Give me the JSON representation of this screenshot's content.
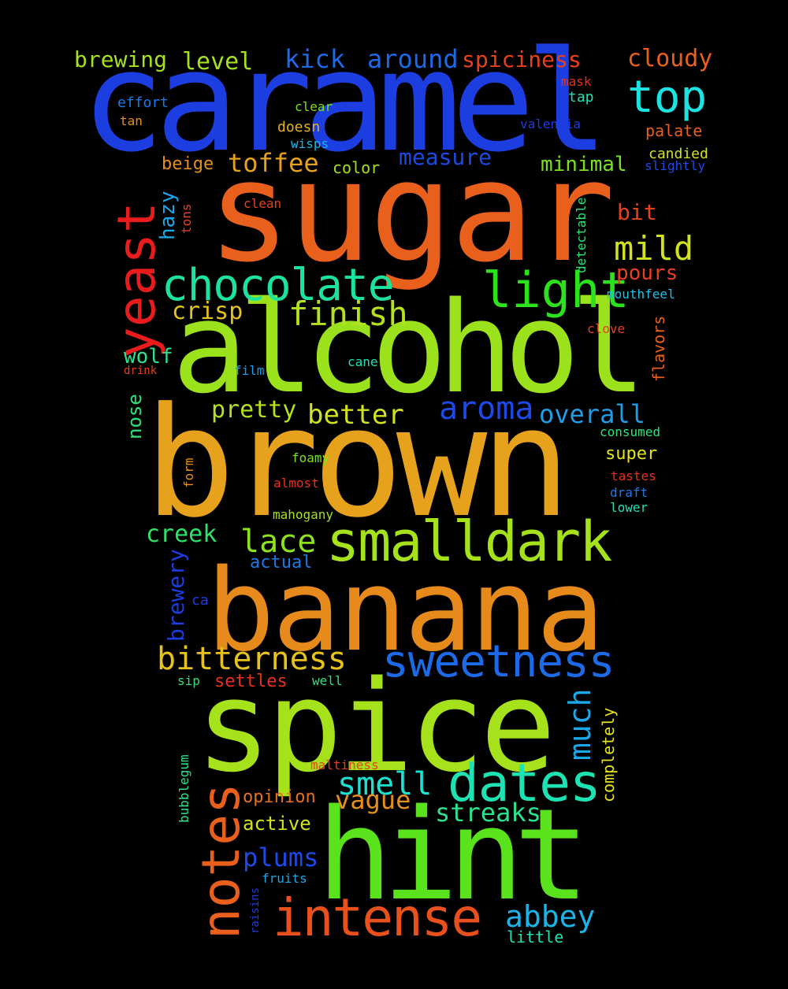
{
  "words": [
    {
      "text": "caramel",
      "color": "#1c3de0"
    },
    {
      "text": "sugar",
      "color": "#e8601c"
    },
    {
      "text": "alcohol",
      "color": "#9ce21c"
    },
    {
      "text": "brown",
      "color": "#e6a21c"
    },
    {
      "text": "banana",
      "color": "#e68a1c"
    },
    {
      "text": "spice",
      "color": "#a6e21c"
    },
    {
      "text": "hint",
      "color": "#5ae21c"
    },
    {
      "text": "smalldark",
      "color": "#a6e21c"
    },
    {
      "text": "intense",
      "color": "#e8501c"
    },
    {
      "text": "sweetness",
      "color": "#1c6ae8"
    },
    {
      "text": "dates",
      "color": "#1ce2b4"
    },
    {
      "text": "notes",
      "color": "#e8601c"
    },
    {
      "text": "yeast",
      "color": "#e81c1c"
    },
    {
      "text": "chocolate",
      "color": "#1ce2a0"
    },
    {
      "text": "light",
      "color": "#2ce21c"
    },
    {
      "text": "top",
      "color": "#1ce2e2"
    },
    {
      "text": "finish",
      "color": "#b4e21c"
    },
    {
      "text": "bitterness",
      "color": "#e6c21c"
    },
    {
      "text": "mild",
      "color": "#d2e21c"
    },
    {
      "text": "aroma",
      "color": "#1c4ae8"
    },
    {
      "text": "overall",
      "color": "#1c9ee8"
    },
    {
      "text": "better",
      "color": "#d2e21c"
    },
    {
      "text": "pretty",
      "color": "#b4e21c"
    },
    {
      "text": "lace",
      "color": "#8ee21c"
    },
    {
      "text": "smell",
      "color": "#1ce2d2"
    },
    {
      "text": "abbey",
      "color": "#1cb4e8"
    },
    {
      "text": "plums",
      "color": "#1c4ae8"
    },
    {
      "text": "much",
      "color": "#1ca8e8"
    },
    {
      "text": "streaks",
      "color": "#2ce28e"
    },
    {
      "text": "vague",
      "color": "#e6901c"
    },
    {
      "text": "toffee",
      "color": "#e6a21c"
    },
    {
      "text": "kick",
      "color": "#1c6ae8"
    },
    {
      "text": "around",
      "color": "#1c6ae8"
    },
    {
      "text": "spiciness",
      "color": "#e8401c"
    },
    {
      "text": "cloudy",
      "color": "#e8601c"
    },
    {
      "text": "brewing",
      "color": "#a6e21c"
    },
    {
      "text": "level",
      "color": "#a6e21c"
    },
    {
      "text": "crisp",
      "color": "#e6c21c"
    },
    {
      "text": "creek",
      "color": "#2ce26a"
    },
    {
      "text": "measure",
      "color": "#1c4ae8"
    },
    {
      "text": "minimal",
      "color": "#7ae21c"
    },
    {
      "text": "bit",
      "color": "#e8401c"
    },
    {
      "text": "pours",
      "color": "#e8401c"
    },
    {
      "text": "brewery",
      "color": "#1c3de0"
    },
    {
      "text": "hazy",
      "color": "#1ca8e8"
    },
    {
      "text": "wolf",
      "color": "#2ce28e"
    },
    {
      "text": "nose",
      "color": "#2ce27a"
    },
    {
      "text": "active",
      "color": "#d2e21c"
    },
    {
      "text": "opinion",
      "color": "#e8701c"
    },
    {
      "text": "super",
      "color": "#e6e21c"
    },
    {
      "text": "actual",
      "color": "#1c7ae8"
    },
    {
      "text": "beige",
      "color": "#e6901c"
    },
    {
      "text": "color",
      "color": "#a6e21c"
    },
    {
      "text": "flavors",
      "color": "#e8601c"
    },
    {
      "text": "completely",
      "color": "#e6e21c"
    },
    {
      "text": "little",
      "color": "#1ce2b4"
    },
    {
      "text": "settles",
      "color": "#e8301c"
    },
    {
      "text": "effort",
      "color": "#1c7ae8"
    },
    {
      "text": "clear",
      "color": "#7ae21c"
    },
    {
      "text": "tap",
      "color": "#1ce2b4"
    },
    {
      "text": "mask",
      "color": "#e8301c"
    },
    {
      "text": "tan",
      "color": "#e6901c"
    },
    {
      "text": "doesn",
      "color": "#e6b21c"
    },
    {
      "text": "valencia",
      "color": "#1c3de0"
    },
    {
      "text": "palate",
      "color": "#e8601c"
    },
    {
      "text": "wisps",
      "color": "#1cb4e8"
    },
    {
      "text": "candied",
      "color": "#d2e21c"
    },
    {
      "text": "slightly",
      "color": "#1c4ae8"
    },
    {
      "text": "clean",
      "color": "#e8401c"
    },
    {
      "text": "tons",
      "color": "#e8401c"
    },
    {
      "text": "detectable",
      "color": "#2ce27a"
    },
    {
      "text": "mouthfeel",
      "color": "#1cc2e8"
    },
    {
      "text": "clove",
      "color": "#e8401c"
    },
    {
      "text": "drink",
      "color": "#e8401c"
    },
    {
      "text": "film",
      "color": "#1c9ee8"
    },
    {
      "text": "cane",
      "color": "#1ce2b4"
    },
    {
      "text": "consumed",
      "color": "#2ce27a"
    },
    {
      "text": "foamy",
      "color": "#7ae21c"
    },
    {
      "text": "form",
      "color": "#e6901c"
    },
    {
      "text": "almost",
      "color": "#e8301c"
    },
    {
      "text": "tastes",
      "color": "#e8301c"
    },
    {
      "text": "draft",
      "color": "#1c7ae8"
    },
    {
      "text": "lower",
      "color": "#1ce2b4"
    },
    {
      "text": "mahogany",
      "color": "#a6e21c"
    },
    {
      "text": "ca",
      "color": "#1c3de0"
    },
    {
      "text": "sip",
      "color": "#2ce27a"
    },
    {
      "text": "well",
      "color": "#2ce27a"
    },
    {
      "text": "maltiness",
      "color": "#e8401c"
    },
    {
      "text": "bubblegum",
      "color": "#2ce28e"
    },
    {
      "text": "fruits",
      "color": "#1ca8e8"
    },
    {
      "text": "raisins",
      "color": "#1c3de0"
    }
  ]
}
